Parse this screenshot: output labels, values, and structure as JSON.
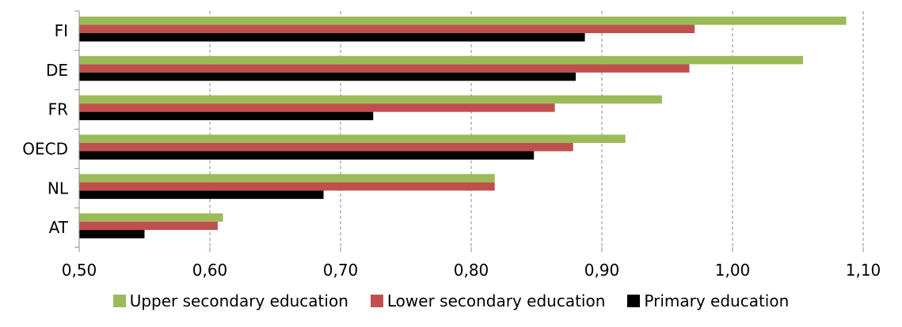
{
  "chart_data": {
    "type": "bar",
    "orientation": "horizontal",
    "categories": [
      "FI",
      "DE",
      "FR",
      "OECD",
      "NL",
      "AT"
    ],
    "series": [
      {
        "name": "Upper secondary education",
        "color": "#9bbb59",
        "values": [
          1.087,
          1.054,
          0.946,
          0.918,
          0.818,
          0.61
        ]
      },
      {
        "name": "Lower secondary education",
        "color": "#c0504d",
        "values": [
          0.971,
          0.967,
          0.864,
          0.878,
          0.818,
          0.606
        ]
      },
      {
        "name": "Primary education",
        "color": "#000000",
        "values": [
          0.887,
          0.88,
          0.725,
          0.848,
          0.687,
          0.55
        ]
      }
    ],
    "xlim": [
      0.5,
      1.1
    ],
    "xticks": [
      "0,50",
      "0,60",
      "0,70",
      "0,80",
      "0,90",
      "1,00",
      "1,10"
    ],
    "grid": "vertical-dashed",
    "legend": "bottom"
  }
}
